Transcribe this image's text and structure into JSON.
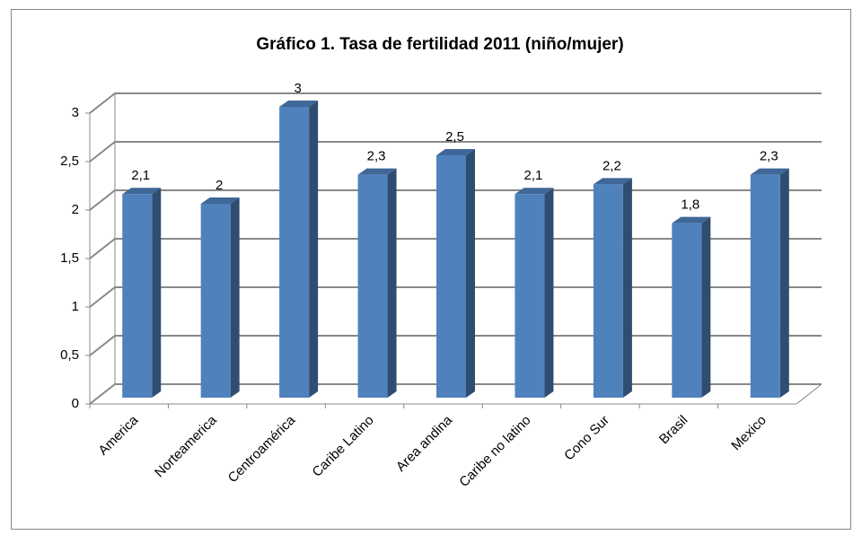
{
  "chart_data": {
    "type": "bar",
    "title": "Gráfico 1. Tasa de fertilidad 2011 (niño/mujer)",
    "categories": [
      "America",
      "Norteamerica",
      "Centroamérica",
      "Caribe Latino",
      "Area andina",
      "Caribe no latino",
      "Cono Sur",
      "Brasil",
      "Mexico"
    ],
    "values": [
      2.1,
      2,
      3,
      2.3,
      2.5,
      2.1,
      2.2,
      1.8,
      2.3
    ],
    "value_labels": [
      "2,1",
      "2",
      "3",
      "2,3",
      "2,5",
      "2,1",
      "2,2",
      "1,8",
      "2,3"
    ],
    "color": "#4f81bd",
    "ylim": [
      0,
      3
    ],
    "yticks": [
      0,
      {
        "value": 0.5,
        "label": "0,5"
      },
      1,
      {
        "value": 1.5,
        "label": "1,5"
      },
      2,
      {
        "value": 2.5,
        "label": "2,5"
      },
      3
    ],
    "grid": true
  }
}
